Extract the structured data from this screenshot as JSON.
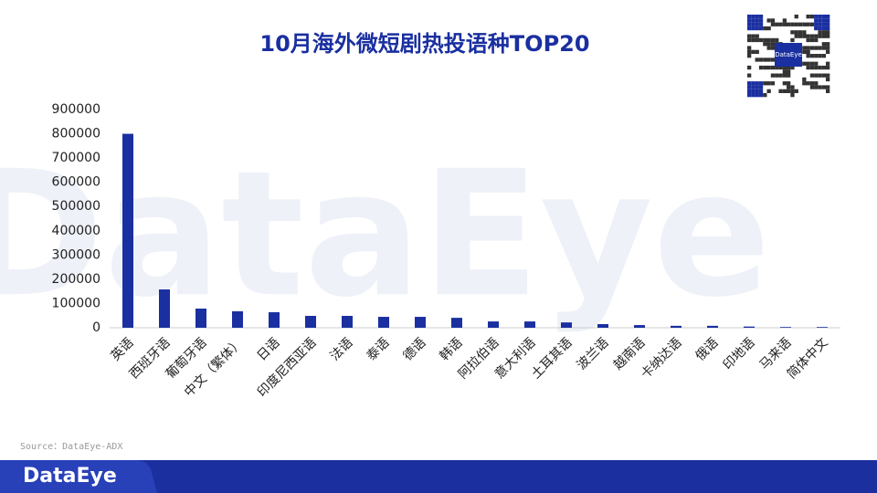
{
  "chart_data": {
    "type": "bar",
    "title": "10月海外微短剧热投语种TOP20",
    "categories": [
      "英语",
      "西班牙语",
      "葡萄牙语",
      "中文（繁体）",
      "日语",
      "印度尼西亚语",
      "法语",
      "泰语",
      "德语",
      "韩语",
      "阿拉伯语",
      "意大利语",
      "土耳其语",
      "波兰语",
      "越南语",
      "卡纳达语",
      "俄语",
      "印地语",
      "马来语",
      "简体中文"
    ],
    "values": [
      800000,
      158000,
      79000,
      68000,
      64000,
      49000,
      49000,
      45000,
      45000,
      41000,
      26000,
      26000,
      22000,
      15000,
      11000,
      8000,
      8000,
      5000,
      3000,
      3000
    ],
    "color": "#1a2fa0",
    "ylim": [
      0,
      900000
    ],
    "yticks": [
      0,
      100000,
      200000,
      300000,
      400000,
      500000,
      600000,
      700000,
      800000,
      900000
    ]
  },
  "source": "Source：DataEye-ADX",
  "watermark": "DataEye",
  "qr_label": "DataEye",
  "footer_brand": "DataEye"
}
